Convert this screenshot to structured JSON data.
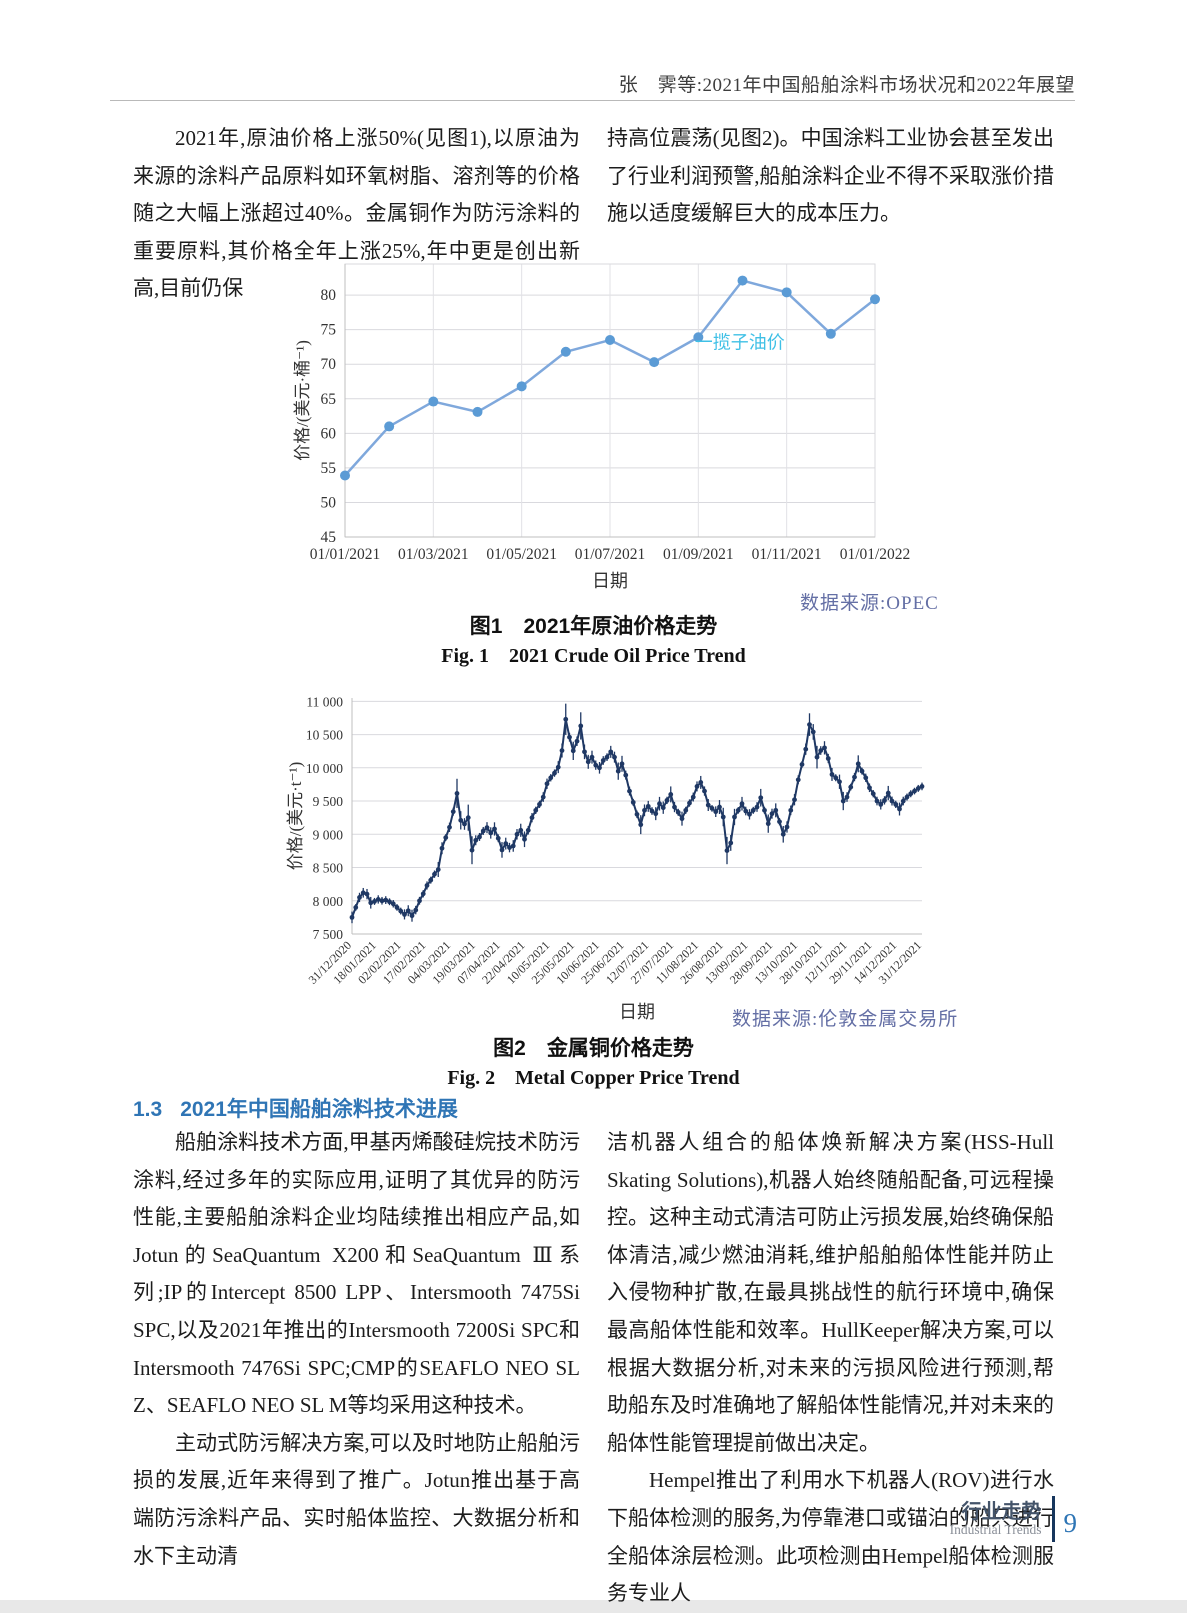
{
  "header": {
    "running_title": "张　霁等:2021年中国船舶涂料市场状况和2022年展望"
  },
  "intro": {
    "left": "2021年,原油价格上涨50%(见图1),以原油为来源的涂料产品原料如环氧树脂、溶剂等的价格随之大幅上涨超过40%。金属铜作为防污涂料的重要原料,其价格全年上涨25%,年中更是创出新高,目前仍保",
    "right": "持高位震荡(见图2)。中国涂料工业协会甚至发出了行业利润预警,船舶涂料企业不得不采取涨价措施以适度缓解巨大的成本压力。"
  },
  "figure1": {
    "source": "数据来源:OPEC",
    "caption_zh": "图1　2021年原油价格走势",
    "caption_en": "Fig. 1　2021 Crude Oil Price Trend"
  },
  "figure2": {
    "source": "数据来源:伦敦金属交易所",
    "caption_zh": "图2　金属铜价格走势",
    "caption_en": "Fig. 2　Metal Copper Price Trend"
  },
  "section": {
    "number": "1.3",
    "title": "2021年中国船舶涂料技术进展"
  },
  "body": {
    "left_p1": "船舶涂料技术方面,甲基丙烯酸硅烷技术防污涂料,经过多年的实际应用,证明了其优异的防污性能,主要船舶涂料企业均陆续推出相应产品,如Jotun的SeaQuantum X200和SeaQuantum Ⅲ系列;IP的Intercept 8500 LPP、Intersmooth 7475Si SPC,以及2021年推出的Intersmooth 7200Si SPC和Intersmooth 7476Si SPC;CMP的SEAFLO NEO SL Z、SEAFLO NEO SL M等均采用这种技术。",
    "left_p2": "主动式防污解决方案,可以及时地防止船舶污损的发展,近年来得到了推广。Jotun推出基于高端防污涂料产品、实时船体监控、大数据分析和水下主动清",
    "right_p1": "洁机器人组合的船体焕新解决方案(HSS-Hull Skating Solutions),机器人始终随船配备,可远程操控。这种主动式清洁可防止污损发展,始终确保船体清洁,减少燃油消耗,维护船舶船体性能并防止入侵物种扩散,在最具挑战性的航行环境中,确保最高船体性能和效率。HullKeeper解决方案,可以根据大数据分析,对未来的污损风险进行预测,帮助船东及时准确地了解船体性能情况,并对未来的船体性能管理提前做出决定。",
    "right_p2": "Hempel推出了利用水下机器人(ROV)进行水下船体检测的服务,为停靠港口或锚泊的船只进行全船体涂层检测。此项检测由Hempel船体检测服务专业人"
  },
  "footer": {
    "zh": "行业走势",
    "en": "Industrial Trends",
    "page_number": "9"
  },
  "chart_data": [
    {
      "name": "crude-oil-chart",
      "type": "line",
      "title": "图1 2021年原油价格走势",
      "xlabel": "日期",
      "ylabel": "价格/(美元·桶⁻¹)",
      "x": [
        "01/01/2021",
        "01/02/2021",
        "01/03/2021",
        "01/04/2021",
        "01/05/2021",
        "01/06/2021",
        "01/07/2021",
        "01/08/2021",
        "01/09/2021",
        "01/10/2021",
        "01/11/2021",
        "01/12/2021",
        "01/01/2022"
      ],
      "values": [
        53.9,
        61.0,
        64.6,
        63.1,
        66.8,
        71.8,
        73.5,
        70.3,
        73.9,
        82.1,
        80.4,
        74.4,
        79.4
      ],
      "x_tick_labels": [
        "01/01/2021",
        "01/03/2021",
        "01/05/2021",
        "01/07/2021",
        "01/09/2021",
        "01/11/2021",
        "01/01/2022"
      ],
      "ylim": [
        45,
        84.5
      ],
      "ytick_values": [
        45,
        50,
        55,
        60,
        65,
        70,
        75,
        80
      ],
      "ytick_labels": [
        "45",
        "50",
        "55",
        "60",
        "65",
        "70",
        "75",
        "80"
      ],
      "grid": true,
      "legend": [
        {
          "label": "一揽子油价",
          "color": "#3FC0E6",
          "fx": 0.66,
          "fy": 0.31
        }
      ],
      "line_color": "#7FA8DC",
      "marker_color": "#5B9BD5"
    },
    {
      "name": "copper-chart",
      "type": "line",
      "title": "图2 金属铜价格走势",
      "xlabel": "日期",
      "ylabel": "价格/(美元·t⁻¹)",
      "values": [
        7750,
        7900,
        8050,
        8120,
        8100,
        7970,
        7990,
        8020,
        8000,
        8010,
        7985,
        7955,
        7900,
        7845,
        7795,
        7850,
        7775,
        7860,
        8000,
        8105,
        8230,
        8310,
        8400,
        8470,
        8790,
        8950,
        9105,
        9340,
        9615,
        9210,
        9155,
        9250,
        8760,
        8910,
        8960,
        9050,
        9100,
        9020,
        9080,
        8940,
        8765,
        8860,
        8800,
        8825,
        9000,
        9060,
        8925,
        9060,
        9250,
        9360,
        9450,
        9560,
        9760,
        9850,
        9920,
        10010,
        10260,
        10730,
        10460,
        10255,
        10400,
        10630,
        10240,
        10090,
        10160,
        10040,
        10000,
        10110,
        10160,
        10240,
        10160,
        9950,
        10060,
        9890,
        9650,
        9480,
        9300,
        9145,
        9360,
        9420,
        9350,
        9310,
        9460,
        9400,
        9510,
        9600,
        9410,
        9330,
        9235,
        9360,
        9470,
        9560,
        9720,
        9780,
        9650,
        9440,
        9390,
        9340,
        9410,
        9260,
        8755,
        8870,
        9260,
        9360,
        9460,
        9350,
        9300,
        9360,
        9410,
        9550,
        9360,
        9160,
        9310,
        9360,
        9190,
        9000,
        9110,
        9360,
        9520,
        9820,
        10050,
        10280,
        10650,
        10540,
        10160,
        10260,
        10300,
        10140,
        9900,
        9850,
        9790,
        9500,
        9560,
        9710,
        9860,
        10060,
        9950,
        9850,
        9700,
        9610,
        9500,
        9450,
        9510,
        9620,
        9500,
        9450,
        9380,
        9500,
        9560,
        9610,
        9650,
        9690,
        9720
      ],
      "x_tick_labels": [
        "31/12/2020",
        "18/01/2021",
        "02/02/2021",
        "17/02/2021",
        "04/03/2021",
        "19/03/2021",
        "07/04/2021",
        "22/04/2021",
        "10/05/2021",
        "25/05/2021",
        "10/06/2021",
        "25/06/2021",
        "12/07/2021",
        "27/07/2021",
        "11/08/2021",
        "26/08/2021",
        "13/09/2021",
        "28/09/2021",
        "13/10/2021",
        "28/10/2021",
        "12/11/2021",
        "29/11/2021",
        "14/12/2021",
        "31/12/2021"
      ],
      "ylim": [
        7500,
        11050
      ],
      "ytick_values": [
        7500,
        8000,
        8500,
        9000,
        9500,
        10000,
        10500,
        11000
      ],
      "ytick_labels": [
        "7 500",
        "8 000",
        "8 500",
        "9 000",
        "9 500",
        "10 000",
        "10 500",
        "11 000"
      ],
      "grid": true,
      "line_color": "#1F3864",
      "marker_color": "#1F3864"
    }
  ],
  "accent_colors": {
    "section_heading": "#2F75B5",
    "source_text": "#646FA5",
    "footer_bar": "#17365D",
    "page_number": "#2E75B5"
  }
}
